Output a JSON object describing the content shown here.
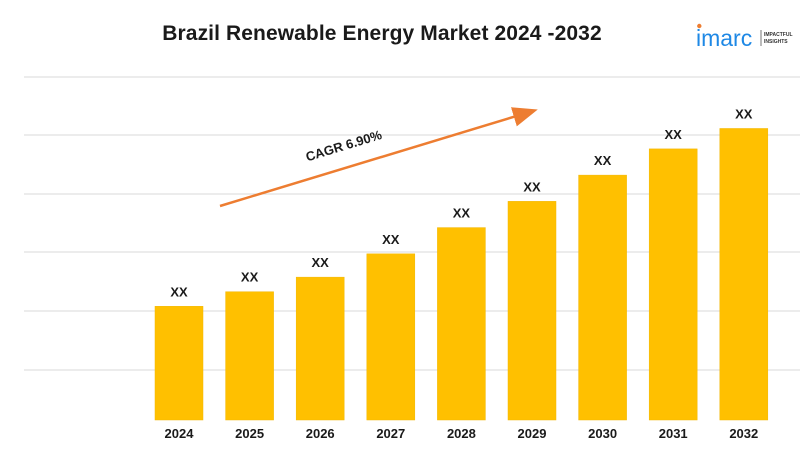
{
  "logo": {
    "wordmark": "imarc",
    "tagline_1": "IMPACTFUL",
    "tagline_2": "INSIGHTS"
  },
  "colors": {
    "bar": "#FFC000",
    "bar_edge": "#F2B705",
    "arrow": "#ED7D31",
    "grid": "#D9D9D9",
    "text": "#1a1a1a",
    "logo_blue": "#1E88E5"
  },
  "chart_data": {
    "type": "bar",
    "title": "Brazil Renewable Energy Market 2024 -2032",
    "categories": [
      "2024",
      "2025",
      "2026",
      "2027",
      "2028",
      "2029",
      "2030",
      "2031",
      "2032"
    ],
    "values": [
      0.39,
      0.44,
      0.49,
      0.57,
      0.66,
      0.75,
      0.84,
      0.93,
      1.0
    ],
    "data_labels": [
      "XX",
      "XX",
      "XX",
      "XX",
      "XX",
      "XX",
      "XX",
      "XX",
      "XX"
    ],
    "value_axis": "relative bar height (no printed scale)",
    "ylim": [
      0,
      1.18
    ],
    "grid": true,
    "annotation": {
      "text": "CAGR 6.90%",
      "type": "trend-arrow"
    }
  }
}
